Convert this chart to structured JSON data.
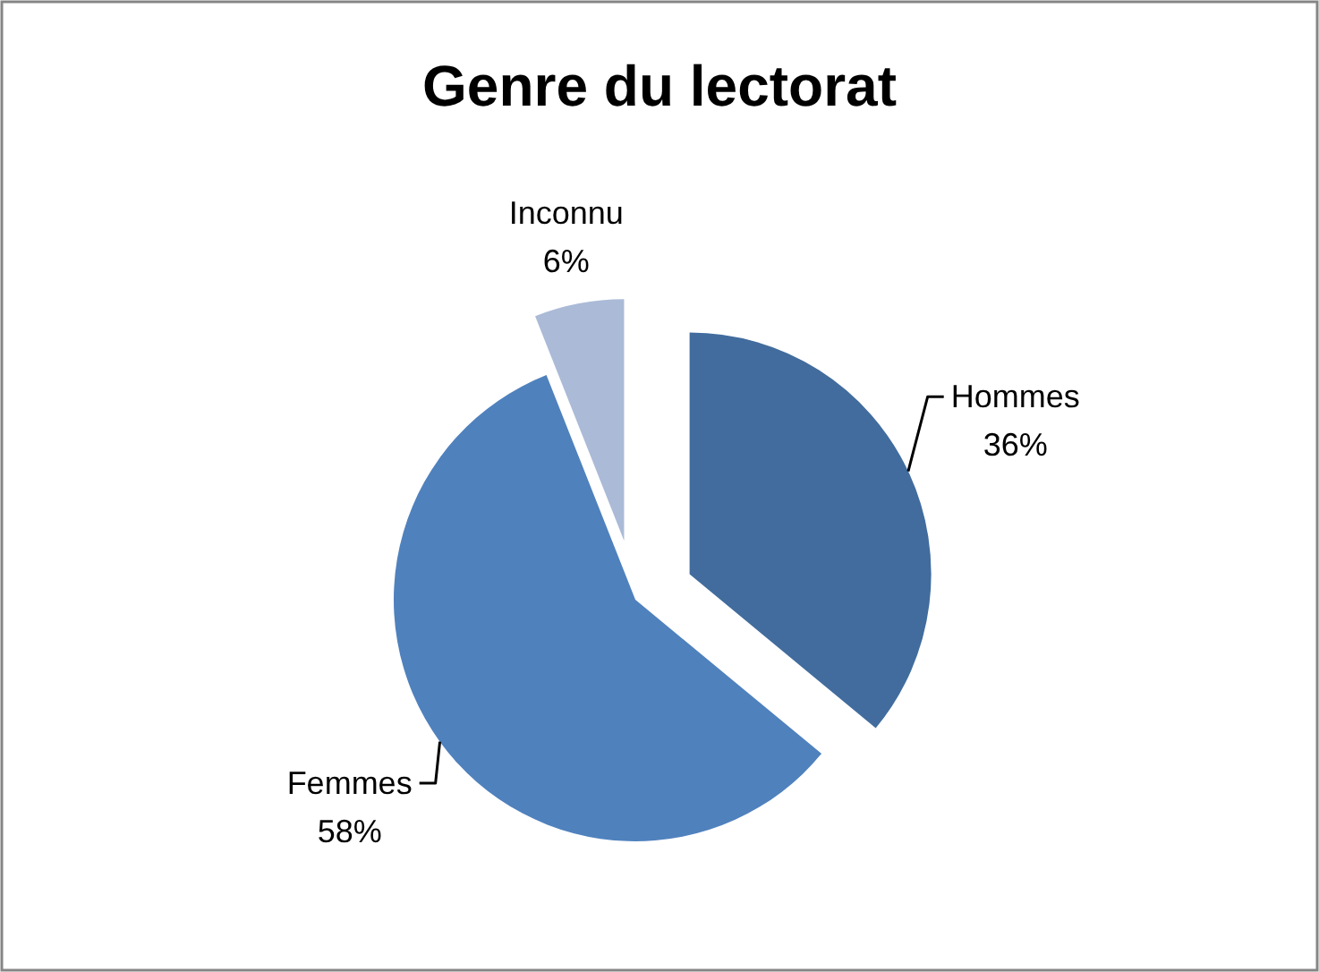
{
  "chart_data": {
    "type": "pie",
    "title": "Genre du lectorat",
    "categories": [
      "Hommes",
      "Femmes",
      "Inconnu"
    ],
    "values": [
      36,
      58,
      6
    ],
    "value_labels": [
      "36%",
      "58%",
      "6%"
    ],
    "colors": [
      "#416c9d",
      "#4f81bd",
      "#aabad7"
    ],
    "legend": false
  }
}
